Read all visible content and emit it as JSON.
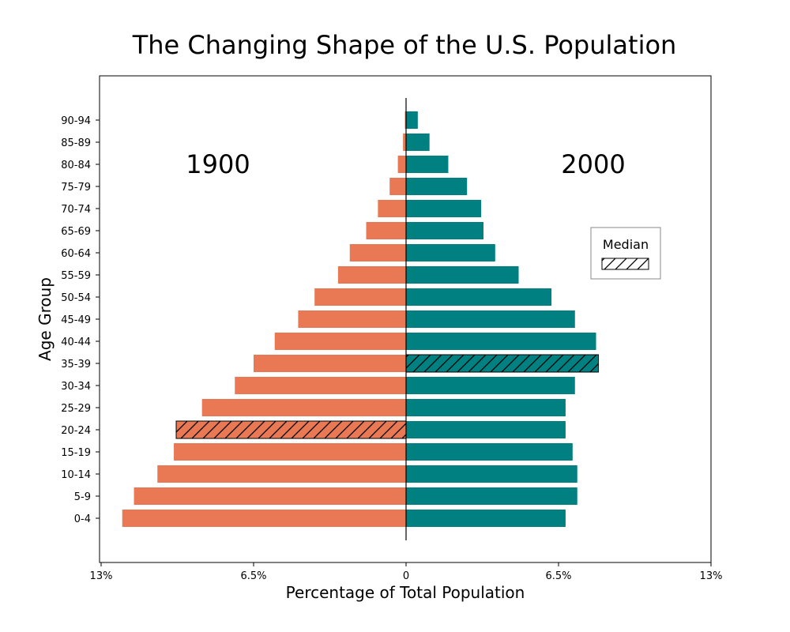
{
  "chart_data": {
    "type": "bar",
    "orientation": "horizontal-population-pyramid",
    "title": "The Changing Shape of the U.S. Population",
    "xlabel": "Percentage of Total Population",
    "ylabel": "Age Group",
    "xlim": [
      -13,
      13
    ],
    "x_tick_values": [
      -13,
      -6.5,
      0,
      6.5,
      13
    ],
    "x_tick_labels": [
      "13%",
      "6.5%",
      "0",
      "6.5%",
      "13%"
    ],
    "categories": [
      "0-4",
      "5-9",
      "10-14",
      "15-19",
      "20-24",
      "25-29",
      "30-34",
      "35-39",
      "40-44",
      "45-49",
      "50-54",
      "55-59",
      "60-64",
      "65-69",
      "70-74",
      "75-79",
      "80-84",
      "85-89",
      "90-94"
    ],
    "series": [
      {
        "name": "1900",
        "color": "#E97854",
        "direction": "left",
        "values": [
          12.1,
          11.6,
          10.6,
          9.9,
          9.8,
          8.7,
          7.3,
          6.5,
          5.6,
          4.6,
          3.9,
          2.9,
          2.4,
          1.7,
          1.2,
          0.7,
          0.35,
          0.13,
          0.05
        ],
        "median_category": "20-24"
      },
      {
        "name": "2000",
        "color": "#008080",
        "direction": "right",
        "values": [
          6.8,
          7.3,
          7.3,
          7.1,
          6.8,
          6.8,
          7.2,
          8.2,
          8.1,
          7.2,
          6.2,
          4.8,
          3.8,
          3.3,
          3.2,
          2.6,
          1.8,
          1.0,
          0.5
        ],
        "median_category": "35-39"
      }
    ],
    "legend": {
      "title": "Median",
      "pattern": "hatch",
      "placement": "right"
    },
    "grid": false
  }
}
